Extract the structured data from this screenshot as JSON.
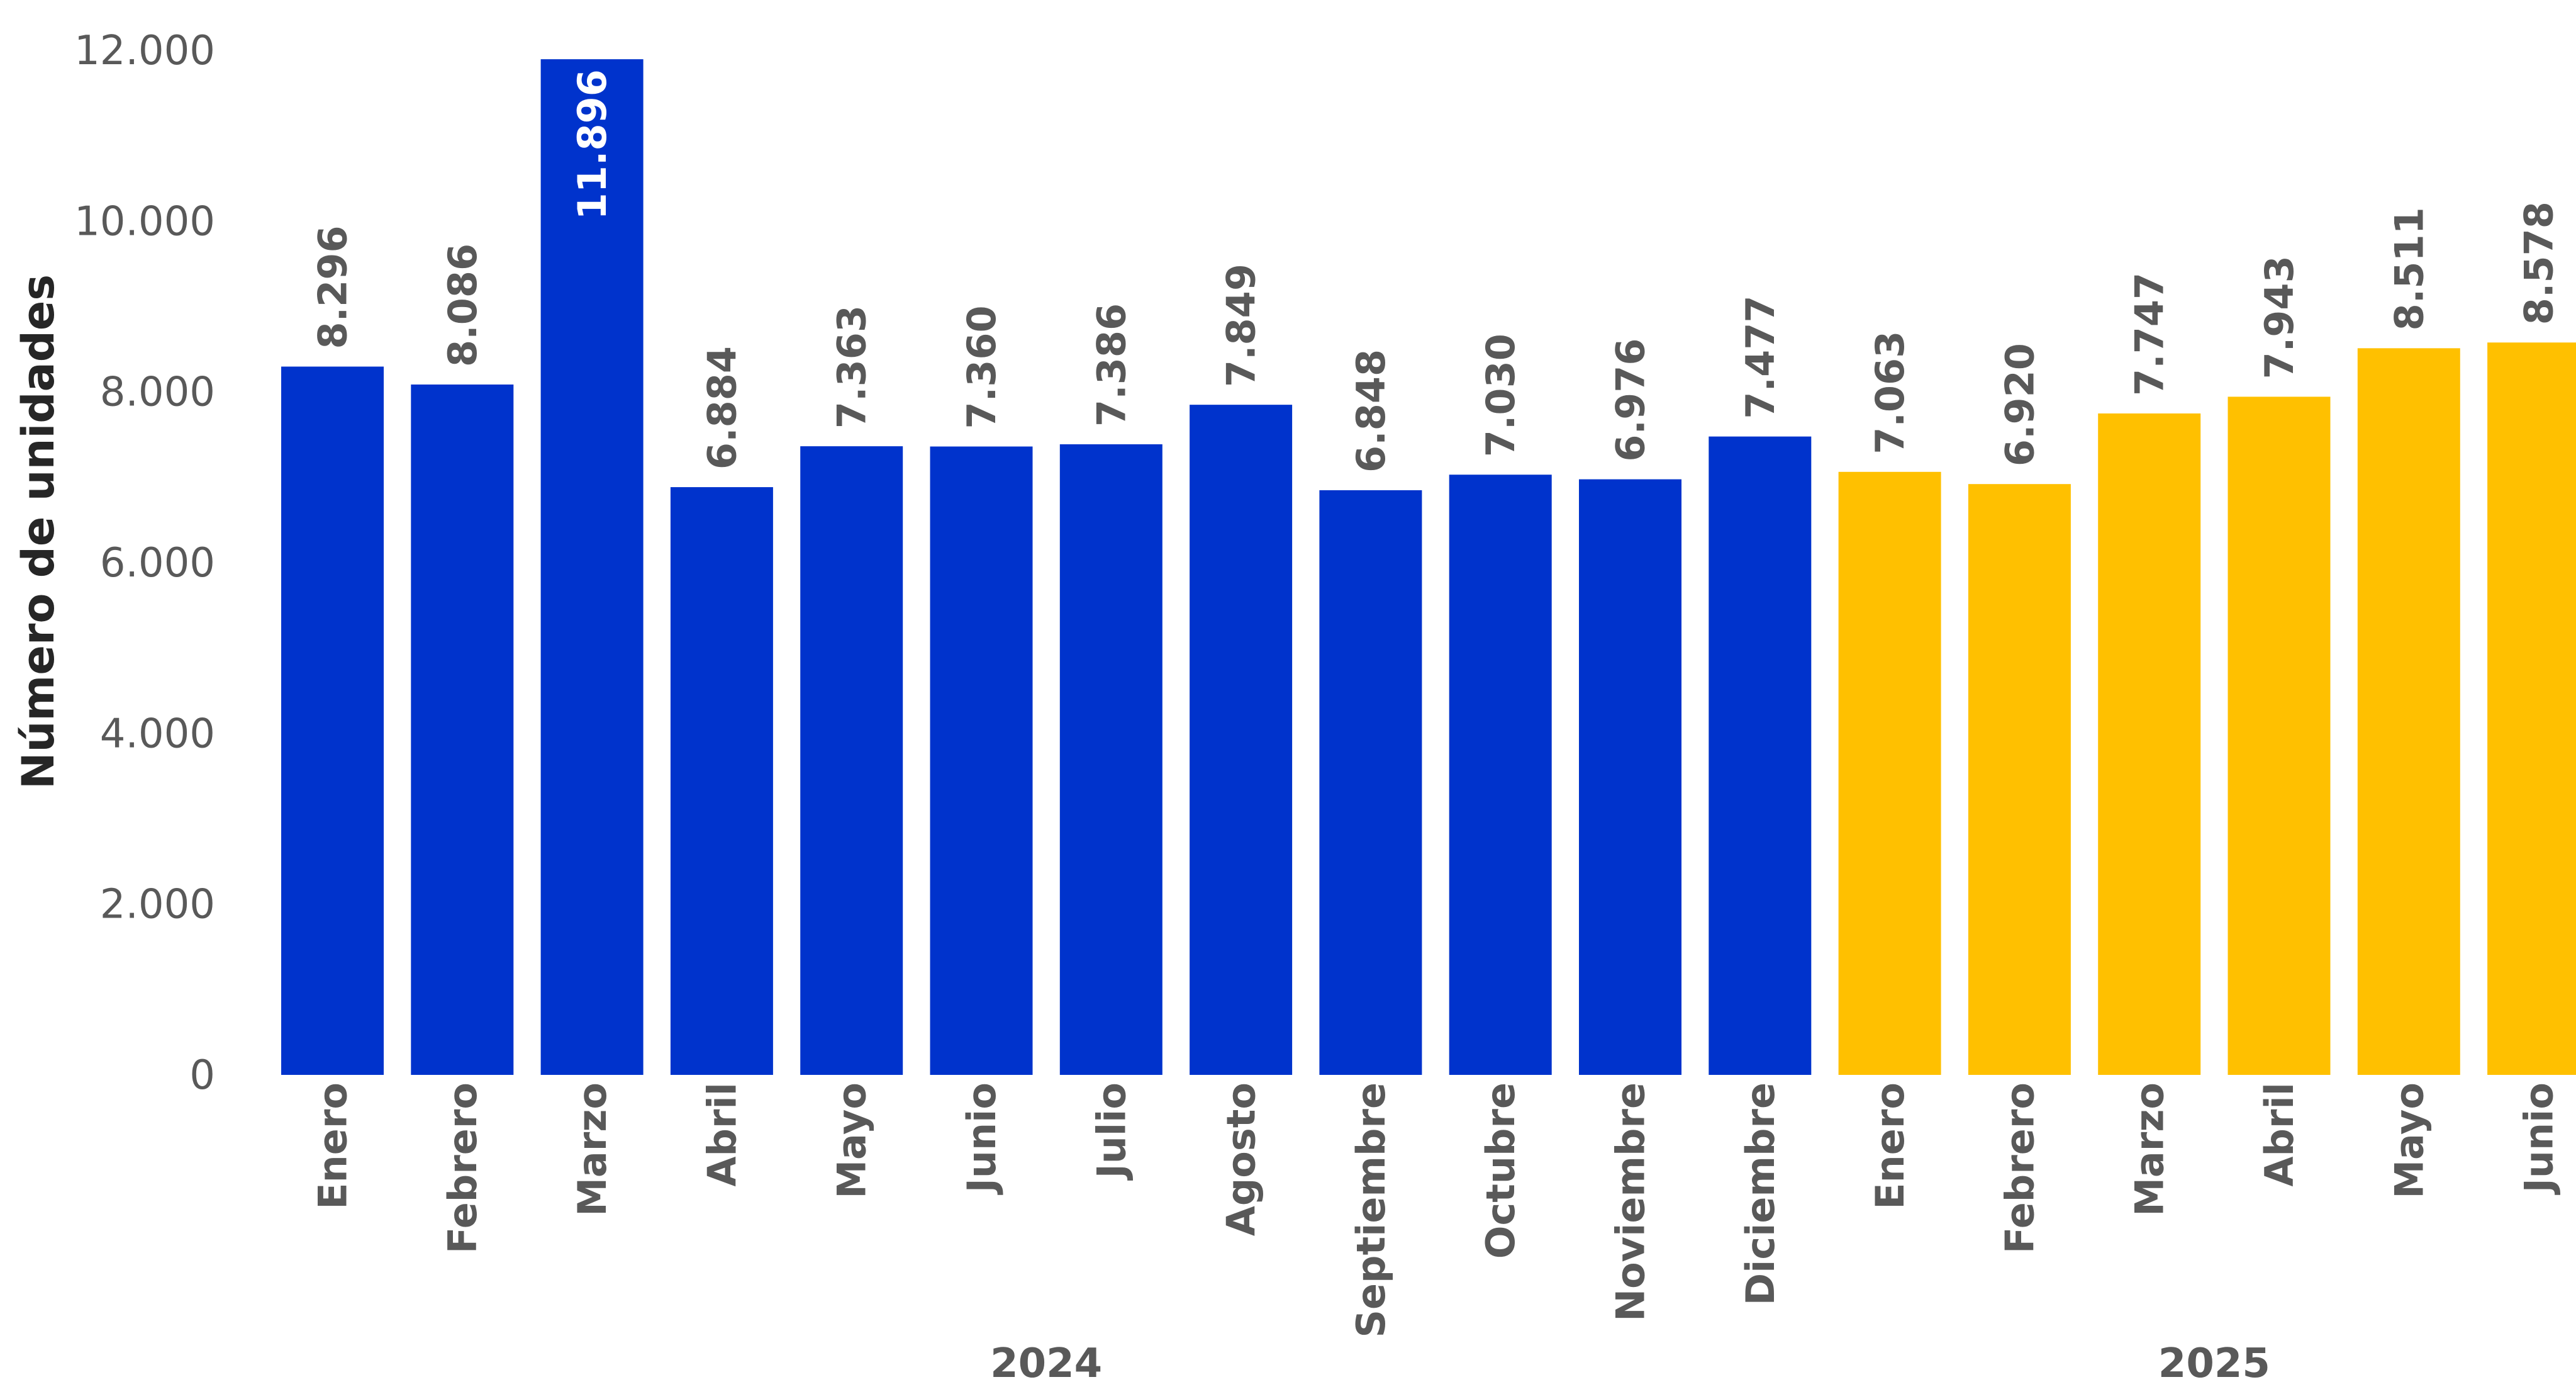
{
  "chart_data": {
    "type": "bar",
    "title": "",
    "xlabel": "",
    "ylabel": "Número de unidades",
    "ylim": [
      0,
      12000
    ],
    "yticks": [
      0,
      2000,
      4000,
      6000,
      8000,
      10000,
      12000
    ],
    "ytick_labels": [
      "0",
      "2.000",
      "4.000",
      "6.000",
      "8.000",
      "10.000",
      "12.000"
    ],
    "grid": false,
    "legend": "none",
    "groups": [
      {
        "label": "2024",
        "color": "#0033CC",
        "categories": [
          "Enero",
          "Febrero",
          "Marzo",
          "Abril",
          "Mayo",
          "Junio",
          "Julio",
          "Agosto",
          "Septiembre",
          "Octubre",
          "Noviembre",
          "Diciembre"
        ],
        "values": [
          8296,
          8086,
          11896,
          6884,
          7363,
          7360,
          7386,
          7849,
          6848,
          7030,
          6976,
          7477
        ],
        "value_labels": [
          "8.296",
          "8.086",
          "11.896",
          "6.884",
          "7.363",
          "7.360",
          "7.386",
          "7.849",
          "6.848",
          "7.030",
          "6.976",
          "7.477"
        ]
      },
      {
        "label": "2025",
        "color": "#FFC000",
        "categories": [
          "Enero",
          "Febrero",
          "Marzo",
          "Abril",
          "Mayo",
          "Junio"
        ],
        "values": [
          7063,
          6920,
          7747,
          7943,
          8511,
          8578
        ],
        "value_labels": [
          "7.063",
          "6.920",
          "7.747",
          "7.943",
          "8.511",
          "8.578"
        ]
      }
    ]
  }
}
